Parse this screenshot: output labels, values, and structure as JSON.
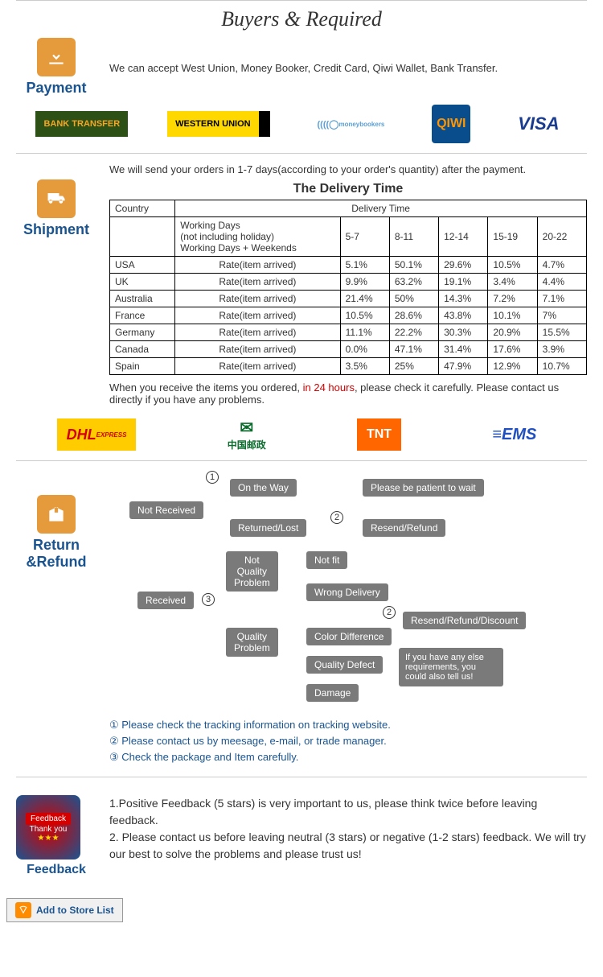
{
  "header": "Buyers & Required",
  "payment": {
    "title": "Payment",
    "text": "We can accept West Union, Money Booker, Credit Card, Qiwi Wallet, Bank Transfer.",
    "logos": [
      "BANK TRANSFER",
      "WESTERN UNION",
      "moneybookers",
      "QIWI",
      "VISA"
    ]
  },
  "shipment": {
    "title": "Shipment",
    "intro": "We will send your orders in 1-7 days(according to your order's quantity) after the payment.",
    "table_title": "The Delivery Time",
    "headers": {
      "country": "Country",
      "delivery": "Delivery Time",
      "working": "Working Days\n(not including holiday)\nWorking Days + Weekends",
      "rate": "Rate(item arrived)"
    },
    "ranges": [
      "5-7",
      "8-11",
      "12-14",
      "15-19",
      "20-22"
    ],
    "rows": [
      {
        "c": "USA",
        "v": [
          "5.1%",
          "50.1%",
          "29.6%",
          "10.5%",
          "4.7%"
        ]
      },
      {
        "c": "UK",
        "v": [
          "9.9%",
          "63.2%",
          "19.1%",
          "3.4%",
          "4.4%"
        ]
      },
      {
        "c": "Australia",
        "v": [
          "21.4%",
          "50%",
          "14.3%",
          "7.2%",
          "7.1%"
        ]
      },
      {
        "c": "France",
        "v": [
          "10.5%",
          "28.6%",
          "43.8%",
          "10.1%",
          "7%"
        ]
      },
      {
        "c": "Germany",
        "v": [
          "11.1%",
          "22.2%",
          "30.3%",
          "20.9%",
          "15.5%"
        ]
      },
      {
        "c": "Canada",
        "v": [
          "0.0%",
          "47.1%",
          "31.4%",
          "17.6%",
          "3.9%"
        ]
      },
      {
        "c": "Spain",
        "v": [
          "3.5%",
          "25%",
          "47.9%",
          "12.9%",
          "10.7%"
        ]
      }
    ],
    "after1": "When you receive the items you ordered, ",
    "after_red": "in 24 hours",
    "after2": ", please check it carefully. Please contact us directly if you have any problems.",
    "carriers": [
      "DHL",
      "中国邮政",
      "TNT",
      "EMS"
    ]
  },
  "return": {
    "title": "Return &Refund",
    "boxes": {
      "not_received": "Not Received",
      "on_way": "On the Way",
      "returned": "Returned/Lost",
      "patient": "Please be patient to wait",
      "resend1": "Resend/Refund",
      "received": "Received",
      "nqp": "Not\nQuality\nProblem",
      "qp": "Quality\nProblem",
      "not_fit": "Not fit",
      "wrong": "Wrong Delivery",
      "color": "Color Difference",
      "defect": "Quality Defect",
      "damage": "Damage",
      "resend2": "Resend/Refund/Discount",
      "callout": "If you have any else requirements, you could also tell us!"
    },
    "notes": [
      "① Please check the tracking information on tracking website.",
      "② Please contact us by meesage, e-mail, or trade manager.",
      "③ Check the package and Item carefully."
    ]
  },
  "feedback": {
    "title": "Feedback",
    "badge": "Feedback",
    "thank": "Thank you",
    "text1": "1.Positive Feedback (5 stars) is very important to us, please think twice before leaving feedback.",
    "text2": "2. Please contact us before leaving neutral (3 stars) or negative (1-2 stars) feedback. We will try our best to solve the problems and please trust us!"
  },
  "store_btn": "Add to Store List"
}
